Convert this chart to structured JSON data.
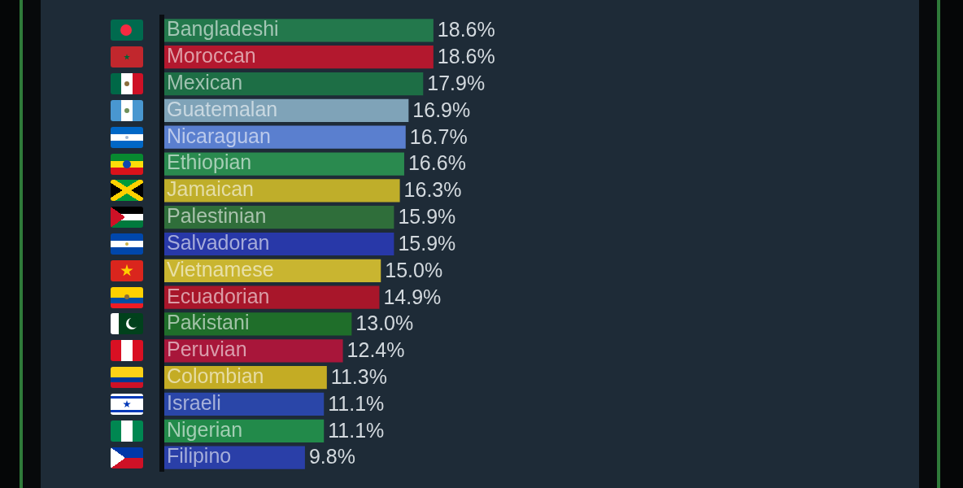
{
  "chart_data": {
    "type": "bar",
    "orientation": "horizontal",
    "categories": [
      "Bangladeshi",
      "Moroccan",
      "Mexican",
      "Guatemalan",
      "Nicaraguan",
      "Ethiopian",
      "Jamaican",
      "Palestinian",
      "Salvadoran",
      "Vietnamese",
      "Ecuadorian",
      "Pakistani",
      "Peruvian",
      "Colombian",
      "Israeli",
      "Nigerian",
      "Filipino"
    ],
    "values": [
      18.6,
      18.6,
      17.9,
      16.9,
      16.7,
      16.6,
      16.3,
      15.9,
      15.9,
      15.0,
      14.9,
      13.0,
      12.4,
      11.3,
      11.1,
      11.1,
      9.8
    ],
    "colors": [
      "#23784c",
      "#b3182e",
      "#1d6e45",
      "#7fa3b8",
      "#5a7fcf",
      "#2a8a4f",
      "#bfae2a",
      "#2f6e3a",
      "#2838a8",
      "#c9b530",
      "#a8162a",
      "#1f6e2a",
      "#a8163a",
      "#c4ac24",
      "#2a46a8",
      "#228a4a",
      "#2a3fa8"
    ],
    "value_labels": [
      "18.6%",
      "18.6%",
      "17.9%",
      "16.9%",
      "16.7%",
      "16.6%",
      "16.3%",
      "15.9%",
      "15.9%",
      "15.0%",
      "14.9%",
      "13.0%",
      "12.4%",
      "11.3%",
      "11.1%",
      "11.1%",
      "9.8%"
    ],
    "tick_labels": "y"
  }
}
